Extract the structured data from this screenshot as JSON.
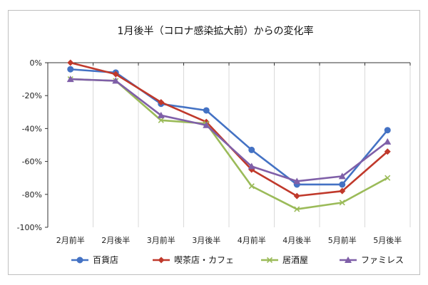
{
  "chart_data": {
    "type": "line",
    "title": "1月後半（コロナ感染拡大前）からの変化率",
    "xlabel": "",
    "ylabel": "",
    "categories": [
      "2月前半",
      "2月後半",
      "3月前半",
      "3月後半",
      "4月前半",
      "4月後半",
      "5月前半",
      "5月後半"
    ],
    "ylim": [
      -100,
      0
    ],
    "yticks": [
      0,
      -20,
      -40,
      -60,
      -80,
      -100
    ],
    "ytick_labels": [
      "0%",
      "-20%",
      "-40%",
      "-60%",
      "-80%",
      "-100%"
    ],
    "grid": "vertical",
    "legend_position": "bottom",
    "series": [
      {
        "name": "百貨店",
        "color": "#4472c4",
        "marker": "circle",
        "values": [
          -4,
          -6,
          -25,
          -29,
          -53,
          -74,
          -74,
          -41
        ]
      },
      {
        "name": "喫茶店・カフェ",
        "color": "#c0392b",
        "marker": "diamond",
        "values": [
          0,
          -7,
          -24,
          -36,
          -65,
          -81,
          -78,
          -54
        ]
      },
      {
        "name": "居酒屋",
        "color": "#9bbb59",
        "marker": "x",
        "values": [
          -10,
          -11,
          -35,
          -37,
          -75,
          -89,
          -85,
          -70
        ]
      },
      {
        "name": "ファミレス",
        "color": "#7f5fa8",
        "marker": "triangle",
        "values": [
          -10,
          -11,
          -32,
          -38,
          -63,
          -72,
          -69,
          -48
        ]
      }
    ]
  }
}
